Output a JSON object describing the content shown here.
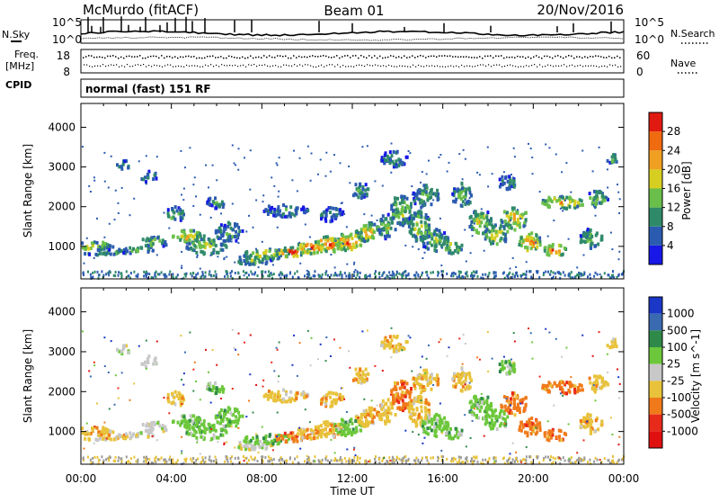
{
  "header": {
    "station": "McMurdo (fitACF)",
    "beam": "Beam 01",
    "date": "20/Nov/2016"
  },
  "left_labels": {
    "nsky": "N.Sky",
    "freq_line1": "Freq.",
    "freq_line2": "[MHz]",
    "cpid": "CPID"
  },
  "right_labels": {
    "nsearch": "N.Search",
    "nave": "Nave"
  },
  "strip_ticks": {
    "noise_top_left": "10^5",
    "noise_bottom_left": "10^0",
    "noise_top_right": "10^5",
    "noise_bottom_right": "10^0",
    "freq_top": "18",
    "freq_bottom": "8",
    "nave_top": "60",
    "nave_bottom": "0"
  },
  "cpid_text": "normal (fast) 151 RF",
  "chart_data": [
    {
      "type": "heatmap",
      "parameter": "Power",
      "colorbar_label": "Power [dB]",
      "ylabel": "Slant Range [km]",
      "xlabel": "Time UT",
      "xlim": [
        "00:00",
        "24:00"
      ],
      "x_ticks": [
        "00:00",
        "04:00",
        "08:00",
        "12:00",
        "16:00",
        "20:00",
        "00:00"
      ],
      "ylim": [
        180,
        4600
      ],
      "y_ticks": [
        "1000",
        "2000",
        "3000",
        "4000"
      ],
      "colorbar_ticks": [
        "4",
        "8",
        "12",
        "16",
        "20",
        "24",
        "28"
      ],
      "colorbar_range": [
        0,
        32
      ],
      "colormap": [
        "#1717e8",
        "#2b5bb0",
        "#2f8a6a",
        "#6abf4a",
        "#d6cf22",
        "#f0a020",
        "#f06a10",
        "#e01a10"
      ]
    },
    {
      "type": "heatmap",
      "parameter": "Velocity",
      "colorbar_label": "Velocity [m s^-1]",
      "ylabel": "Slant Range [km]",
      "xlabel": "Time UT",
      "xlim": [
        "00:00",
        "24:00"
      ],
      "x_ticks": [
        "00:00",
        "04:00",
        "08:00",
        "12:00",
        "16:00",
        "20:00",
        "00:00"
      ],
      "ylim": [
        180,
        4600
      ],
      "y_ticks": [
        "1000",
        "2000",
        "3000",
        "4000"
      ],
      "colorbar_ticks": [
        "1000",
        "500",
        "100",
        "25",
        "-25",
        "-100",
        "-500",
        "-1000"
      ],
      "colorbar_colors": [
        "#1a37c8",
        "#3a6ab0",
        "#2f8a4a",
        "#6cc83a",
        "#c8c8c8",
        "#e8c23a",
        "#f07a1a",
        "#e82a1a",
        "#e01010"
      ],
      "ground_scatter_color": "#9a9a9a"
    }
  ]
}
